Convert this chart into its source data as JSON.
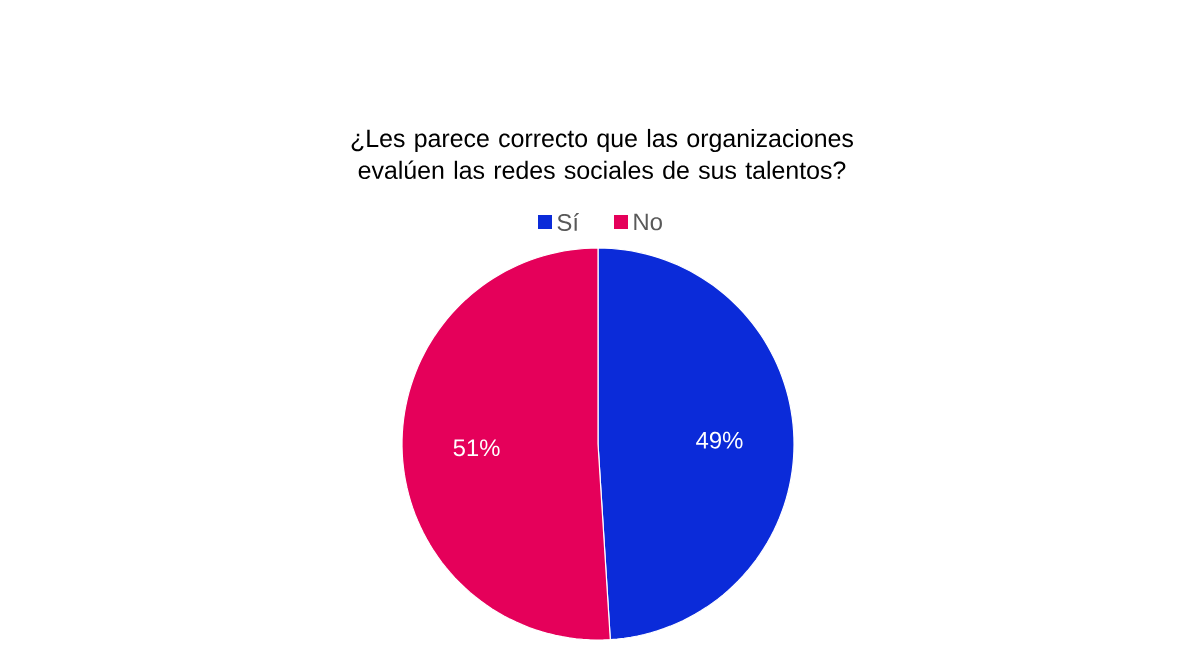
{
  "chart_data": {
    "type": "pie",
    "title": "¿Les parece correcto que las organizaciones evalúen las redes sociales de sus talentos?",
    "categories": [
      "Sí",
      "No"
    ],
    "values": [
      49,
      51
    ],
    "colors": [
      "#0b2bd9",
      "#e5005a"
    ],
    "value_labels": [
      "49%",
      "51%"
    ],
    "legend": "top"
  }
}
